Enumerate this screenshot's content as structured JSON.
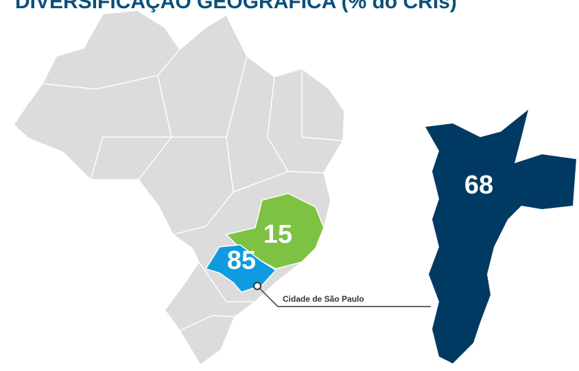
{
  "map": {
    "title": "DIVERSIFICAÇÃO GEOGRÁFICA (% do CRIs)",
    "regions": [
      {
        "value": 85,
        "color": "#0e9be0"
      },
      {
        "value": 15,
        "color": "#7dc242"
      }
    ],
    "city": {
      "label": "Cidade de São Paulo",
      "value": 68,
      "color": "#003a63"
    }
  }
}
